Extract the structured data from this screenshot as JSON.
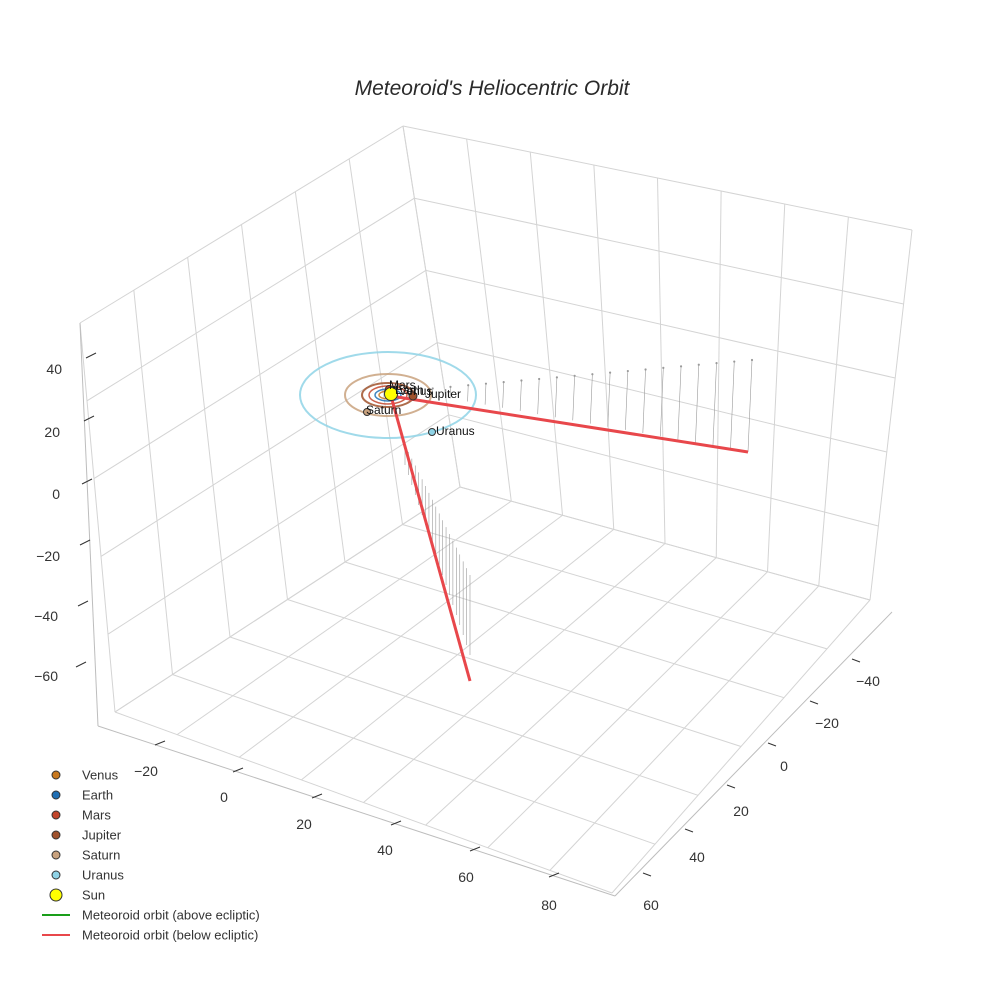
{
  "chart_data": {
    "type": "scatter3d",
    "title": "Meteoroid's Heliocentric Orbit",
    "axes": {
      "x": {
        "ticks": [
          "−20",
          "0",
          "20",
          "40",
          "60",
          "80"
        ]
      },
      "y": {
        "ticks": [
          "−40",
          "−20",
          "0",
          "20",
          "40",
          "60"
        ]
      },
      "z": {
        "ticks": [
          "40",
          "20",
          "0",
          "−20",
          "−40",
          "−60"
        ]
      }
    },
    "grid": true,
    "legend_position": "bottom-left",
    "bodies": [
      {
        "name": "Venus",
        "color": "#c8781e",
        "marker": "circle"
      },
      {
        "name": "Earth",
        "color": "#1f6fb4",
        "marker": "circle"
      },
      {
        "name": "Mars",
        "color": "#c2452b",
        "marker": "circle"
      },
      {
        "name": "Jupiter",
        "color": "#a0522d",
        "marker": "circle"
      },
      {
        "name": "Saturn",
        "color": "#c9a27e",
        "marker": "circle"
      },
      {
        "name": "Uranus",
        "color": "#8fd3e6",
        "marker": "circle"
      },
      {
        "name": "Sun",
        "color": "#ffff00",
        "marker": "circle-large"
      }
    ],
    "series": [
      {
        "name": "Meteoroid orbit (above ecliptic)",
        "color": "#1a9e1a"
      },
      {
        "name": "Meteoroid orbit (below ecliptic)",
        "color": "#e8474b"
      }
    ]
  }
}
